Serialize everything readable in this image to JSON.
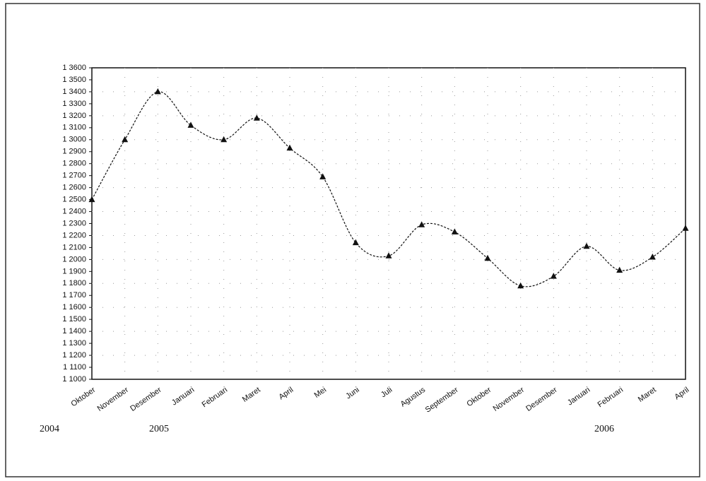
{
  "chart_data": {
    "type": "line",
    "categories": [
      "Oktober",
      "November",
      "Desember",
      "Januari",
      "Februari",
      "Maret",
      "April",
      "Mei",
      "Juni",
      "Juli",
      "Agustus",
      "September",
      "Oktober",
      "November",
      "Desember",
      "Januari",
      "Februari",
      "Maret",
      "April"
    ],
    "values": [
      1.25,
      1.3,
      1.34,
      1.312,
      1.3,
      1.318,
      1.293,
      1.269,
      1.214,
      1.203,
      1.229,
      1.223,
      1.201,
      1.178,
      1.186,
      1.211,
      1.191,
      1.202,
      1.226
    ],
    "color": "#111111",
    "annotations": [
      "2004",
      "2005",
      "2006"
    ],
    "ylim": [
      1.1,
      1.36
    ],
    "yticks": [
      {
        "value": 1.1,
        "label": "1 1000"
      },
      {
        "value": 1.11,
        "label": "1 1100"
      },
      {
        "value": 1.12,
        "label": "1 1200"
      },
      {
        "value": 1.13,
        "label": "1 1300"
      },
      {
        "value": 1.14,
        "label": "1 1400"
      },
      {
        "value": 1.15,
        "label": "1 1500"
      },
      {
        "value": 1.16,
        "label": "1 1600"
      },
      {
        "value": 1.17,
        "label": "1 1700"
      },
      {
        "value": 1.18,
        "label": "1 1800"
      },
      {
        "value": 1.19,
        "label": "1 1900"
      },
      {
        "value": 1.2,
        "label": "1 2000"
      },
      {
        "value": 1.21,
        "label": "1 2100"
      },
      {
        "value": 1.22,
        "label": "1 2200"
      },
      {
        "value": 1.23,
        "label": "1 2300"
      },
      {
        "value": 1.24,
        "label": "1 2400"
      },
      {
        "value": 1.25,
        "label": "1 2500"
      },
      {
        "value": 1.26,
        "label": "1 2600"
      },
      {
        "value": 1.27,
        "label": "1 2700"
      },
      {
        "value": 1.28,
        "label": "1 2800"
      },
      {
        "value": 1.29,
        "label": "1 2900"
      },
      {
        "value": 1.3,
        "label": "1 3000"
      },
      {
        "value": 1.31,
        "label": "1 3100"
      },
      {
        "value": 1.32,
        "label": "1 3200"
      },
      {
        "value": 1.33,
        "label": "1 3300"
      },
      {
        "value": 1.34,
        "label": "1 3400"
      },
      {
        "value": 1.35,
        "label": "1 3500"
      },
      {
        "value": 1.36,
        "label": "1 3600"
      }
    ],
    "grid": true
  }
}
